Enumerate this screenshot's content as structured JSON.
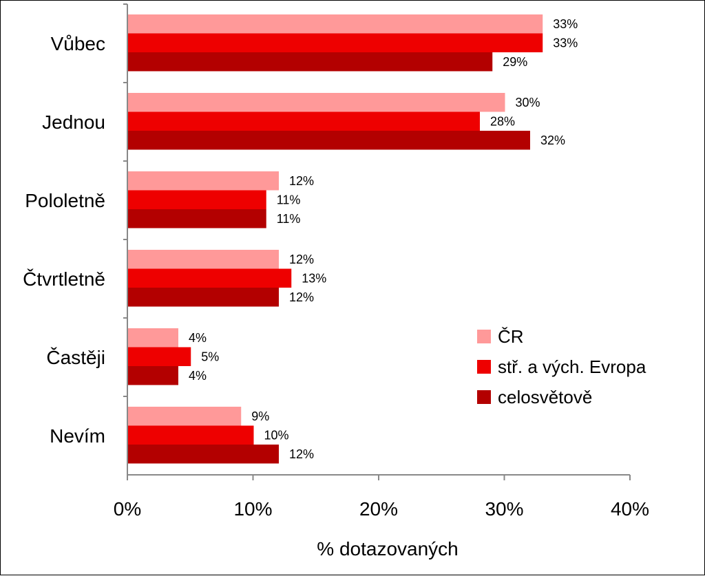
{
  "chart_data": {
    "type": "bar",
    "orientation": "horizontal",
    "categories": [
      "Vůbec",
      "Jednou",
      "Pololetně",
      "Čtvrtletně",
      "Častěji",
      "Nevím"
    ],
    "series": [
      {
        "name": "ČR",
        "color": "#ff9999",
        "values": [
          33,
          30,
          12,
          12,
          4,
          9
        ],
        "labels": [
          "33%",
          "30%",
          "12%",
          "12%",
          "4%",
          "9%"
        ]
      },
      {
        "name": "stř. a vých. Evropa",
        "color": "#ee0000",
        "values": [
          33,
          28,
          11,
          13,
          5,
          10
        ],
        "labels": [
          "33%",
          "28%",
          "11%",
          "13%",
          "5%",
          "10%"
        ]
      },
      {
        "name": "celosvětově",
        "color": "#b30000",
        "values": [
          29,
          32,
          11,
          12,
          4,
          12
        ],
        "labels": [
          "29%",
          "32%",
          "11%",
          "12%",
          "4%",
          "12%"
        ]
      }
    ],
    "xlim": [
      0,
      40
    ],
    "xticks": [
      0,
      10,
      20,
      30,
      40
    ],
    "xtick_labels": [
      "0%",
      "10%",
      "20%",
      "30%",
      "40%"
    ],
    "xlabel": "% dotazovaných",
    "grid": false,
    "legend_position": "bottom-right"
  }
}
